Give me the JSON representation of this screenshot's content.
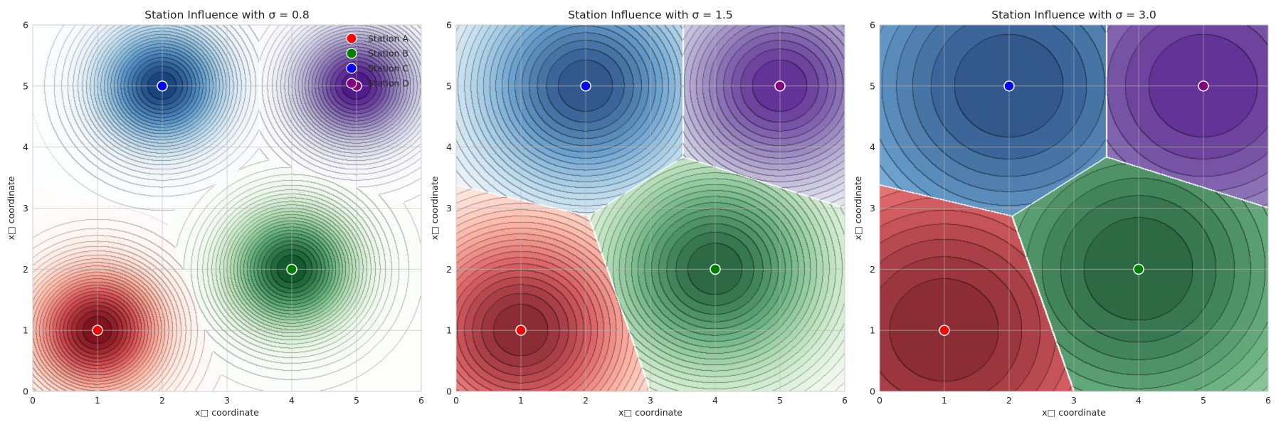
{
  "chart_data": [
    {
      "type": "heatmap",
      "title": "Station Influence with σ = 0.8",
      "sigma": 0.8,
      "xlabel": "x□ coordinate",
      "ylabel": "x□ coordinate",
      "xlim": [
        0,
        6
      ],
      "ylim": [
        0,
        6
      ],
      "xticks": [
        "0",
        "1",
        "2",
        "3",
        "4",
        "5",
        "6"
      ],
      "yticks": [
        "0",
        "1",
        "2",
        "3",
        "4",
        "5",
        "6"
      ],
      "grid": true,
      "legend": "top-right",
      "stations": [
        {
          "name": "Station A",
          "x": 1,
          "y": 1,
          "color": "#ff0000"
        },
        {
          "name": "Station B",
          "x": 4,
          "y": 2,
          "color": "#008000"
        },
        {
          "name": "Station C",
          "x": 2,
          "y": 5,
          "color": "#0000ff"
        },
        {
          "name": "Station D",
          "x": 5,
          "y": 5,
          "color": "#800080"
        }
      ]
    },
    {
      "type": "heatmap",
      "title": "Station Influence with σ = 1.5",
      "sigma": 1.5,
      "xlabel": "x□ coordinate",
      "ylabel": "x□ coordinate",
      "xlim": [
        0,
        6
      ],
      "ylim": [
        0,
        6
      ],
      "xticks": [
        "0",
        "1",
        "2",
        "3",
        "4",
        "5",
        "6"
      ],
      "yticks": [
        "0",
        "1",
        "2",
        "3",
        "4",
        "5",
        "6"
      ],
      "grid": true,
      "stations": [
        {
          "name": "Station A",
          "x": 1,
          "y": 1,
          "color": "#ff0000"
        },
        {
          "name": "Station B",
          "x": 4,
          "y": 2,
          "color": "#008000"
        },
        {
          "name": "Station C",
          "x": 2,
          "y": 5,
          "color": "#0000ff"
        },
        {
          "name": "Station D",
          "x": 5,
          "y": 5,
          "color": "#800080"
        }
      ]
    },
    {
      "type": "heatmap",
      "title": "Station Influence with σ = 3.0",
      "sigma": 3.0,
      "xlabel": "x□ coordinate",
      "ylabel": "x□ coordinate",
      "xlim": [
        0,
        6
      ],
      "ylim": [
        0,
        6
      ],
      "xticks": [
        "0",
        "1",
        "2",
        "3",
        "4",
        "5",
        "6"
      ],
      "yticks": [
        "0",
        "1",
        "2",
        "3",
        "4",
        "5",
        "6"
      ],
      "grid": true,
      "stations": [
        {
          "name": "Station A",
          "x": 1,
          "y": 1,
          "color": "#ff0000"
        },
        {
          "name": "Station B",
          "x": 4,
          "y": 2,
          "color": "#008000"
        },
        {
          "name": "Station C",
          "x": 2,
          "y": 5,
          "color": "#0000ff"
        },
        {
          "name": "Station D",
          "x": 5,
          "y": 5,
          "color": "#800080"
        }
      ]
    }
  ],
  "colormaps": {
    "Station A": [
      "#fff5f0",
      "#fcbba1",
      "#fb6a4a",
      "#cb181d",
      "#67000d"
    ],
    "Station B": [
      "#f7fcf5",
      "#c7e9c0",
      "#74c476",
      "#238b45",
      "#00441b"
    ],
    "Station C": [
      "#f7fbff",
      "#c6dbef",
      "#6baed6",
      "#2171b5",
      "#08306b"
    ],
    "Station D": [
      "#fcfbfd",
      "#dadaeb",
      "#9e9ac8",
      "#6a51a3",
      "#3f007d"
    ]
  }
}
